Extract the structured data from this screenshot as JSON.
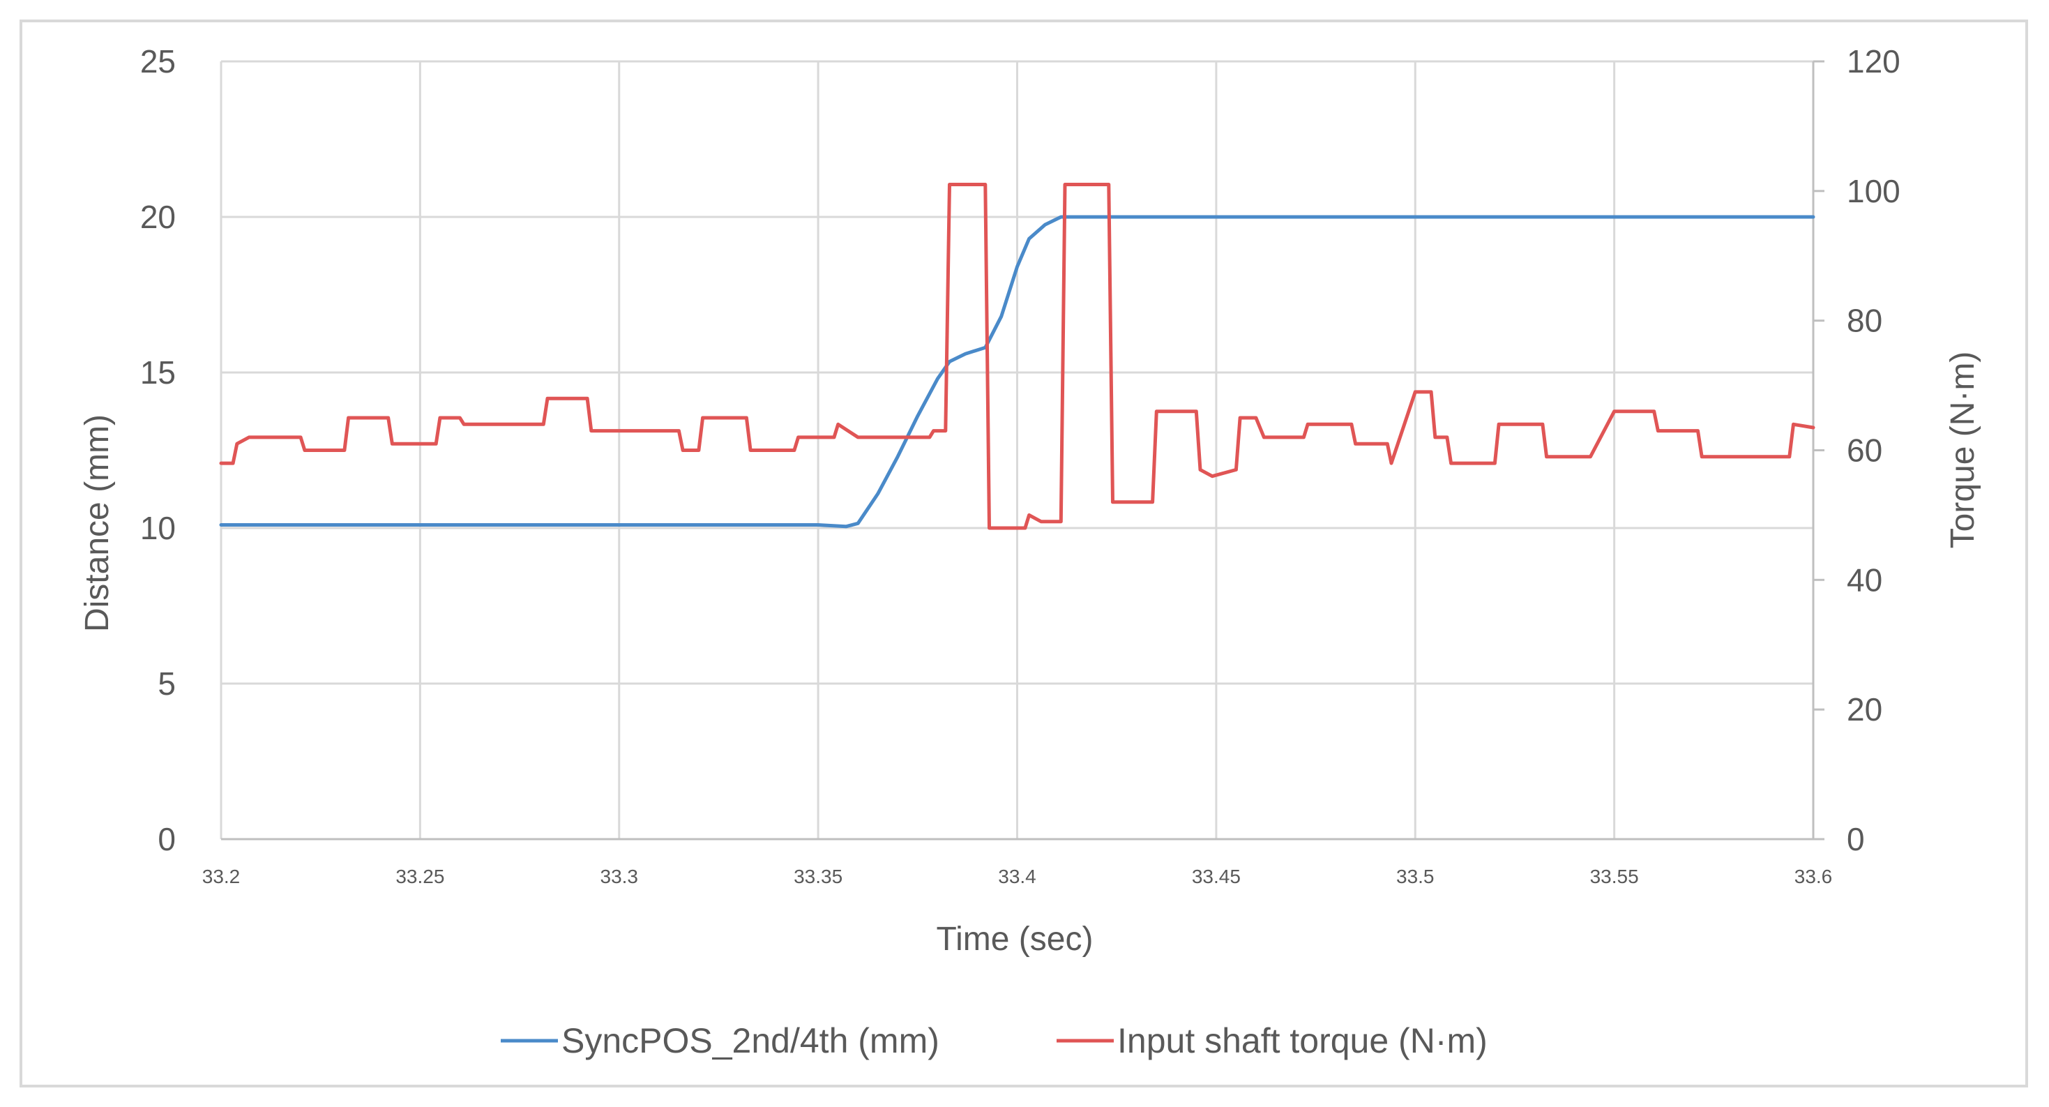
{
  "chart_data": {
    "type": "line",
    "xlabel": "Time (sec)",
    "ylabel": "Distance (mm)",
    "y2label": "Torque (N·m)",
    "xlim": [
      33.2,
      33.6
    ],
    "ylim": [
      0,
      25
    ],
    "y2lim": [
      0,
      120
    ],
    "x_ticks": [
      "33.2",
      "33.25",
      "33.3",
      "33.35",
      "33.4",
      "33.45",
      "33.5",
      "33.55",
      "33.6"
    ],
    "y_ticks": [
      "0",
      "5",
      "10",
      "15",
      "20",
      "25"
    ],
    "y2_ticks": [
      "0",
      "20",
      "40",
      "60",
      "80",
      "100",
      "120"
    ],
    "grid": true,
    "legend_position": "bottom",
    "series": [
      {
        "name": "SyncPOS_2nd/4th (mm)",
        "axis": "left",
        "color": "#4a8ac9",
        "points": [
          [
            33.2,
            10.1
          ],
          [
            33.25,
            10.1
          ],
          [
            33.3,
            10.1
          ],
          [
            33.35,
            10.1
          ],
          [
            33.357,
            10.05
          ],
          [
            33.36,
            10.15
          ],
          [
            33.365,
            11.1
          ],
          [
            33.37,
            12.3
          ],
          [
            33.375,
            13.6
          ],
          [
            33.38,
            14.8
          ],
          [
            33.383,
            15.35
          ],
          [
            33.387,
            15.6
          ],
          [
            33.392,
            15.8
          ],
          [
            33.396,
            16.8
          ],
          [
            33.4,
            18.4
          ],
          [
            33.403,
            19.3
          ],
          [
            33.407,
            19.75
          ],
          [
            33.411,
            20.0
          ],
          [
            33.6,
            20.0
          ]
        ]
      },
      {
        "name": "Input shaft torque (N·m)",
        "axis": "right",
        "color": "#e05555",
        "points": [
          [
            33.2,
            58
          ],
          [
            33.203,
            58
          ],
          [
            33.204,
            61
          ],
          [
            33.207,
            62
          ],
          [
            33.22,
            62
          ],
          [
            33.221,
            60
          ],
          [
            33.231,
            60
          ],
          [
            33.232,
            65
          ],
          [
            33.242,
            65
          ],
          [
            33.243,
            61
          ],
          [
            33.254,
            61
          ],
          [
            33.255,
            65
          ],
          [
            33.26,
            65
          ],
          [
            33.261,
            64
          ],
          [
            33.281,
            64
          ],
          [
            33.282,
            68
          ],
          [
            33.292,
            68
          ],
          [
            33.293,
            63
          ],
          [
            33.315,
            63
          ],
          [
            33.316,
            60
          ],
          [
            33.32,
            60
          ],
          [
            33.321,
            65
          ],
          [
            33.332,
            65
          ],
          [
            33.333,
            60
          ],
          [
            33.344,
            60
          ],
          [
            33.345,
            62
          ],
          [
            33.354,
            62
          ],
          [
            33.355,
            64
          ],
          [
            33.36,
            62
          ],
          [
            33.378,
            62
          ],
          [
            33.379,
            63
          ],
          [
            33.382,
            63
          ],
          [
            33.383,
            101
          ],
          [
            33.392,
            101
          ],
          [
            33.393,
            48
          ],
          [
            33.398,
            48
          ],
          [
            33.402,
            48
          ],
          [
            33.403,
            50
          ],
          [
            33.406,
            49
          ],
          [
            33.411,
            49
          ],
          [
            33.412,
            101
          ],
          [
            33.423,
            101
          ],
          [
            33.424,
            52
          ],
          [
            33.434,
            52
          ],
          [
            33.435,
            66
          ],
          [
            33.445,
            66
          ],
          [
            33.446,
            57
          ],
          [
            33.449,
            56
          ],
          [
            33.455,
            57
          ],
          [
            33.456,
            65
          ],
          [
            33.46,
            65
          ],
          [
            33.462,
            62
          ],
          [
            33.472,
            62
          ],
          [
            33.473,
            64
          ],
          [
            33.484,
            64
          ],
          [
            33.485,
            61
          ],
          [
            33.493,
            61
          ],
          [
            33.494,
            58
          ],
          [
            33.5,
            69
          ],
          [
            33.504,
            69
          ],
          [
            33.505,
            62
          ],
          [
            33.508,
            62
          ],
          [
            33.509,
            58
          ],
          [
            33.52,
            58
          ],
          [
            33.521,
            64
          ],
          [
            33.532,
            64
          ],
          [
            33.533,
            59
          ],
          [
            33.544,
            59
          ],
          [
            33.55,
            66
          ],
          [
            33.56,
            66
          ],
          [
            33.561,
            63
          ],
          [
            33.571,
            63
          ],
          [
            33.572,
            59
          ],
          [
            33.594,
            59
          ],
          [
            33.595,
            64
          ],
          [
            33.6,
            63.5
          ]
        ]
      }
    ]
  }
}
